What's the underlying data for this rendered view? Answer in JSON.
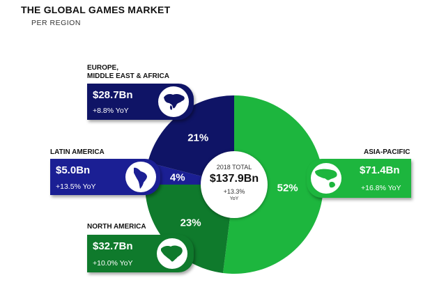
{
  "chart_data": {
    "type": "pie",
    "title": "THE GLOBAL GAMES MARKET",
    "subtitle": "PER REGION",
    "center": {
      "label": "2018 TOTAL",
      "value": "$137.9Bn",
      "change": "+13.3%",
      "unit": "YoY"
    },
    "slices": [
      {
        "key": "asia",
        "region": "ASIA-PACIFIC",
        "percent": 52,
        "percent_label": "52%",
        "value": "$71.4Bn",
        "yoy": "+16.8% YoY",
        "color": "#1db63e",
        "card_color": "#1db63e",
        "map_icon": "asia-pacific-map-icon"
      },
      {
        "key": "na",
        "region": "NORTH AMERICA",
        "percent": 23,
        "percent_label": "23%",
        "value": "$32.7Bn",
        "yoy": "+10.0% YoY",
        "color": "#0f7a2c",
        "card_color": "#0f7a2c",
        "map_icon": "north-america-map-icon"
      },
      {
        "key": "latam",
        "region": "LATIN AMERICA",
        "percent": 4,
        "percent_label": "4%",
        "value": "$5.0Bn",
        "yoy": "+13.5% YoY",
        "color": "#1b1f94",
        "card_color": "#1b1f94",
        "map_icon": "latin-america-map-icon"
      },
      {
        "key": "emea",
        "region": "EUROPE,\nMIDDLE EAST & AFRICA",
        "percent": 21,
        "percent_label": "21%",
        "value": "$28.7Bn",
        "yoy": "+8.8% YoY",
        "color": "#0f1466",
        "card_color": "#0f1466",
        "map_icon": "emea-map-icon"
      }
    ]
  }
}
